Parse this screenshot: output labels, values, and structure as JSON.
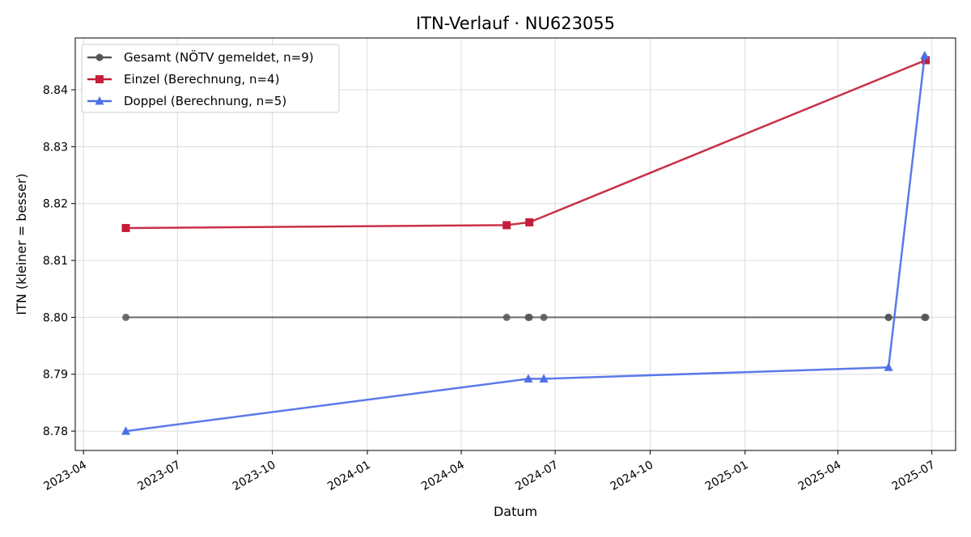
{
  "chart_data": {
    "type": "line",
    "title": "ITN-Verlauf · NU623055",
    "xlabel": "Datum",
    "ylabel": "ITN  (kleiner = besser)",
    "x_ticks": [
      "2023-04",
      "2023-07",
      "2023-10",
      "2024-01",
      "2024-04",
      "2024-07",
      "2024-10",
      "2025-01",
      "2025-04",
      "2025-07"
    ],
    "y_ticks": [
      "8.78",
      "8.79",
      "8.80",
      "8.81",
      "8.82",
      "8.83",
      "8.84"
    ],
    "xlim": [
      "2023-03-24",
      "2025-07-24"
    ],
    "ylim": [
      8.7766,
      8.8491
    ],
    "grid": true,
    "legend_position": "top-left",
    "series": [
      {
        "name": "Gesamt (NÖTV gemeldet, n=9)",
        "color": "#555555",
        "marker": "circle",
        "x": [
          "2023-05-12",
          "2024-05-15",
          "2024-06-05",
          "2024-06-06",
          "2024-06-20",
          "2025-05-20",
          "2025-05-20",
          "2025-06-24",
          "2025-06-25"
        ],
        "y": [
          8.8,
          8.8,
          8.8,
          8.8,
          8.8,
          8.8,
          8.8,
          8.8,
          8.8
        ]
      },
      {
        "name": "Einzel (Berechnung, n=4)",
        "color": "#c41e3a",
        "marker": "square",
        "x": [
          "2023-05-12",
          "2024-05-15",
          "2024-06-06",
          "2025-06-25"
        ],
        "y": [
          8.8157,
          8.8162,
          8.8167,
          8.8452
        ]
      },
      {
        "name": "Doppel (Berechnung, n=5)",
        "color": "#4d6ee8",
        "marker": "triangle",
        "x": [
          "2023-05-12",
          "2024-06-05",
          "2024-06-20",
          "2025-05-20",
          "2025-06-24"
        ],
        "y": [
          8.78,
          8.7892,
          8.7892,
          8.7912,
          8.846
        ]
      }
    ]
  }
}
